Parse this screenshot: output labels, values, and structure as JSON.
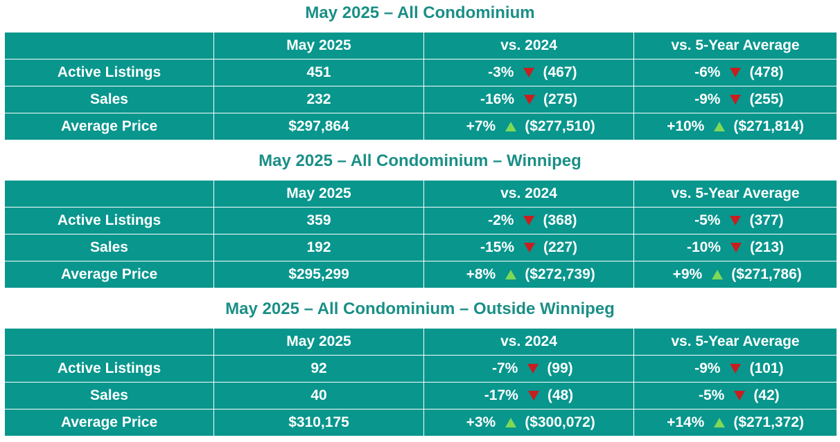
{
  "headers": [
    "",
    "May 2025",
    "vs. 2024",
    "vs. 5-Year Average"
  ],
  "tables": [
    {
      "title": "May 2025 – All Condominium",
      "rows": [
        {
          "label": "Active Listings",
          "value": "451",
          "vs2024": {
            "pct": "-3%",
            "dir": "down",
            "prev": "(467)"
          },
          "vs5yr": {
            "pct": "-6%",
            "dir": "down",
            "prev": "(478)"
          }
        },
        {
          "label": "Sales",
          "value": "232",
          "vs2024": {
            "pct": "-16%",
            "dir": "down",
            "prev": "(275)"
          },
          "vs5yr": {
            "pct": "-9%",
            "dir": "down",
            "prev": "(255)"
          }
        },
        {
          "label": "Average Price",
          "value": "$297,864",
          "vs2024": {
            "pct": "+7%",
            "dir": "up",
            "prev": "($277,510)"
          },
          "vs5yr": {
            "pct": "+10%",
            "dir": "up",
            "prev": "($271,814)"
          }
        }
      ]
    },
    {
      "title": "May 2025 – All Condominium – Winnipeg",
      "rows": [
        {
          "label": "Active Listings",
          "value": "359",
          "vs2024": {
            "pct": "-2%",
            "dir": "down",
            "prev": "(368)"
          },
          "vs5yr": {
            "pct": "-5%",
            "dir": "down",
            "prev": "(377)"
          }
        },
        {
          "label": "Sales",
          "value": "192",
          "vs2024": {
            "pct": "-15%",
            "dir": "down",
            "prev": "(227)"
          },
          "vs5yr": {
            "pct": "-10%",
            "dir": "down",
            "prev": "(213)"
          }
        },
        {
          "label": "Average Price",
          "value": "$295,299",
          "vs2024": {
            "pct": "+8%",
            "dir": "up",
            "prev": "($272,739)"
          },
          "vs5yr": {
            "pct": "+9%",
            "dir": "up",
            "prev": "($271,786)"
          }
        }
      ]
    },
    {
      "title": "May 2025 – All Condominium – Outside Winnipeg",
      "rows": [
        {
          "label": "Active Listings",
          "value": "92",
          "vs2024": {
            "pct": "-7%",
            "dir": "down",
            "prev": "(99)"
          },
          "vs5yr": {
            "pct": "-9%",
            "dir": "down",
            "prev": "(101)"
          }
        },
        {
          "label": "Sales",
          "value": "40",
          "vs2024": {
            "pct": "-17%",
            "dir": "down",
            "prev": "(48)"
          },
          "vs5yr": {
            "pct": "-5%",
            "dir": "down",
            "prev": "(42)"
          }
        },
        {
          "label": "Average Price",
          "value": "$310,175",
          "vs2024": {
            "pct": "+3%",
            "dir": "up",
            "prev": "($300,072)"
          },
          "vs5yr": {
            "pct": "+14%",
            "dir": "up",
            "prev": "($271,372)"
          }
        }
      ]
    }
  ],
  "colors": {
    "title": "#1a8f86",
    "cell_bg": "#08968d",
    "down_arrow": "#c81e1e",
    "up_arrow": "#7ed957"
  }
}
